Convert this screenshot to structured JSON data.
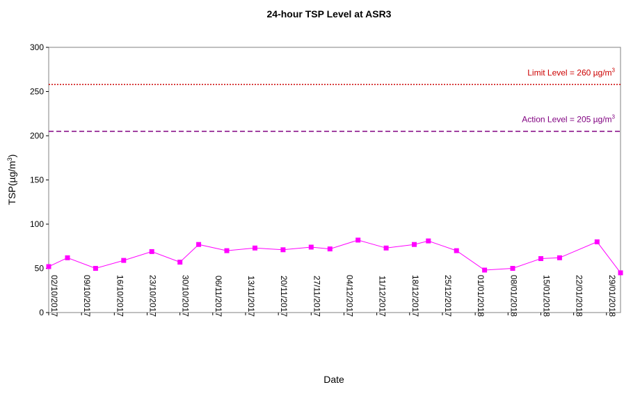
{
  "chart_data": {
    "type": "line",
    "title": "24-hour TSP Level at ASR3",
    "xlabel": "Date",
    "ylabel": {
      "base": "TSP(",
      "unit": "µg/m",
      "sup": "3",
      "close": ")"
    },
    "ylim": [
      0,
      300
    ],
    "yticks": [
      0,
      50,
      100,
      150,
      200,
      250,
      300
    ],
    "xlim": [
      "2017-10-02",
      "2018-02-01"
    ],
    "xticks": [
      "02/10/2017",
      "09/10/2017",
      "16/10/2017",
      "23/10/2017",
      "30/10/2017",
      "06/11/2017",
      "13/11/2017",
      "20/11/2017",
      "27/11/2017",
      "04/12/2017",
      "11/12/2017",
      "18/12/2017",
      "25/12/2017",
      "01/01/2018",
      "08/01/2018",
      "15/01/2018",
      "22/01/2018",
      "29/01/2018"
    ],
    "grid": false,
    "series": [
      {
        "color": "#ff00ff",
        "points": [
          [
            "2017-10-02",
            52
          ],
          [
            "2017-10-06",
            62
          ],
          [
            "2017-10-12",
            50
          ],
          [
            "2017-10-18",
            59
          ],
          [
            "2017-10-24",
            69
          ],
          [
            "2017-10-30",
            57
          ],
          [
            "2017-11-03",
            77
          ],
          [
            "2017-11-09",
            70
          ],
          [
            "2017-11-15",
            73
          ],
          [
            "2017-11-21",
            71
          ],
          [
            "2017-11-27",
            74
          ],
          [
            "2017-12-01",
            72
          ],
          [
            "2017-12-07",
            82
          ],
          [
            "2017-12-13",
            73
          ],
          [
            "2017-12-19",
            77
          ],
          [
            "2017-12-22",
            81
          ],
          [
            "2017-12-28",
            70
          ],
          [
            "2018-01-03",
            48
          ],
          [
            "2018-01-09",
            50
          ],
          [
            "2018-01-15",
            61
          ],
          [
            "2018-01-19",
            62
          ],
          [
            "2018-01-27",
            80
          ],
          [
            "2018-02-01",
            45
          ]
        ]
      }
    ],
    "reference_lines": [
      {
        "value": 260,
        "drawn_at": 258,
        "label": "Limit Level = 260 ",
        "unit": "µg/m",
        "sup": "3",
        "color": "#cc0000",
        "style": "dotted"
      },
      {
        "value": 205,
        "drawn_at": 205,
        "label": "Action Level = 205 ",
        "unit": "µg/m",
        "sup": "3",
        "color": "#800080",
        "style": "dashed"
      }
    ]
  }
}
